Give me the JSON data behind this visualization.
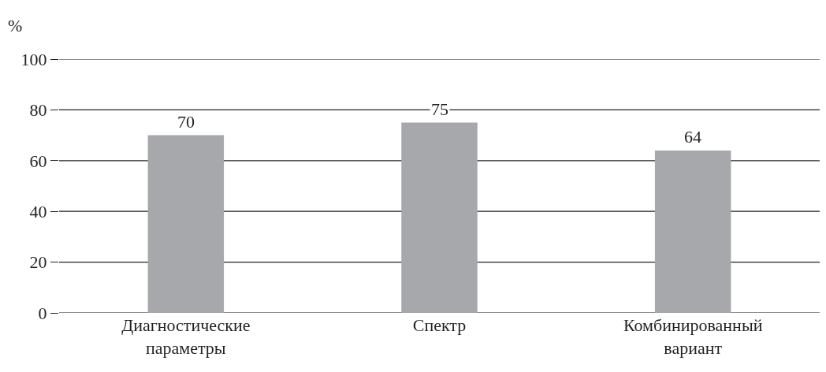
{
  "chart_data": {
    "type": "bar",
    "ylabel": "%",
    "categories": [
      "Диагностические параметры",
      "Спектр",
      "Комбинированный вариант"
    ],
    "values": [
      70,
      75,
      64
    ],
    "color": "#a7a8ab",
    "ylim": [
      0,
      100
    ],
    "yticks": [
      0,
      20,
      40,
      60,
      80,
      100
    ],
    "grid": "y",
    "data_labels": true,
    "legend": false
  }
}
